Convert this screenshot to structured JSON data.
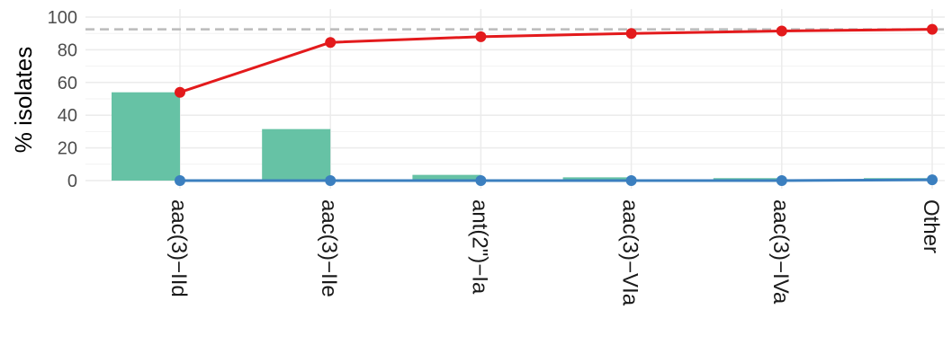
{
  "chart_data": {
    "type": "bar",
    "ylabel": "% isolates",
    "ylim": [
      0,
      100
    ],
    "yticks": [
      "0",
      "20",
      "40",
      "60",
      "80",
      "100"
    ],
    "grid": true,
    "categories": [
      "aac(3)−IId",
      "aac(3)−IIe",
      "ant(2\")−Ia",
      "aac(3)−VIa",
      "aac(3)−IVa",
      "Other"
    ],
    "bar_values": [
      54,
      31.5,
      3.5,
      2,
      1.5,
      1.5
    ],
    "bar_color": "#66c2a5",
    "series": [
      {
        "values": [
          54,
          84.5,
          88,
          90,
          91.5,
          92.5
        ],
        "color": "#e31a1c"
      },
      {
        "values": [
          0,
          0,
          0,
          0,
          0,
          0.5
        ],
        "color": "#3b7fbf"
      }
    ],
    "reference_line": {
      "value": 92.5,
      "color": "#bbbbbb"
    }
  }
}
